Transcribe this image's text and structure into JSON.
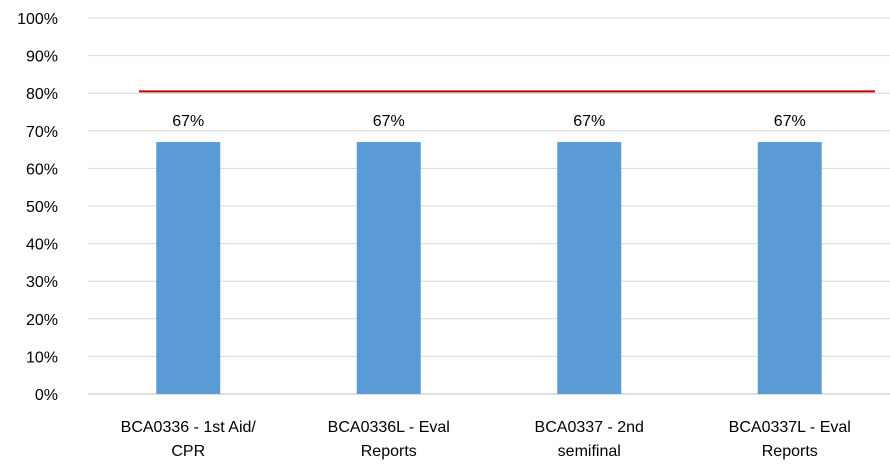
{
  "chart_data": {
    "type": "bar",
    "categories": [
      [
        "BCA0336 - 1st Aid/",
        "CPR"
      ],
      [
        "BCA0336L - Eval",
        "Reports"
      ],
      [
        "BCA0337 - 2nd",
        "semifinal"
      ],
      [
        "BCA0337L - Eval",
        "Reports"
      ]
    ],
    "values": [
      67,
      67,
      67,
      67
    ],
    "data_labels": [
      "67%",
      "67%",
      "67%",
      "67%"
    ],
    "ylim": [
      0,
      100
    ],
    "y_ticks": [
      0,
      10,
      20,
      30,
      40,
      50,
      60,
      70,
      80,
      90,
      100
    ],
    "y_tick_labels": [
      "0%",
      "10%",
      "20%",
      "30%",
      "40%",
      "50%",
      "60%",
      "70%",
      "80%",
      "90%",
      "100%"
    ],
    "reference_line": {
      "value": 80.5,
      "color": "#c00000"
    },
    "grid": true,
    "colors": {
      "bar": "#5b9bd5",
      "grid": "#d9d9d9",
      "axis": "#bfbfbf"
    },
    "title": "",
    "xlabel": "",
    "ylabel": ""
  }
}
